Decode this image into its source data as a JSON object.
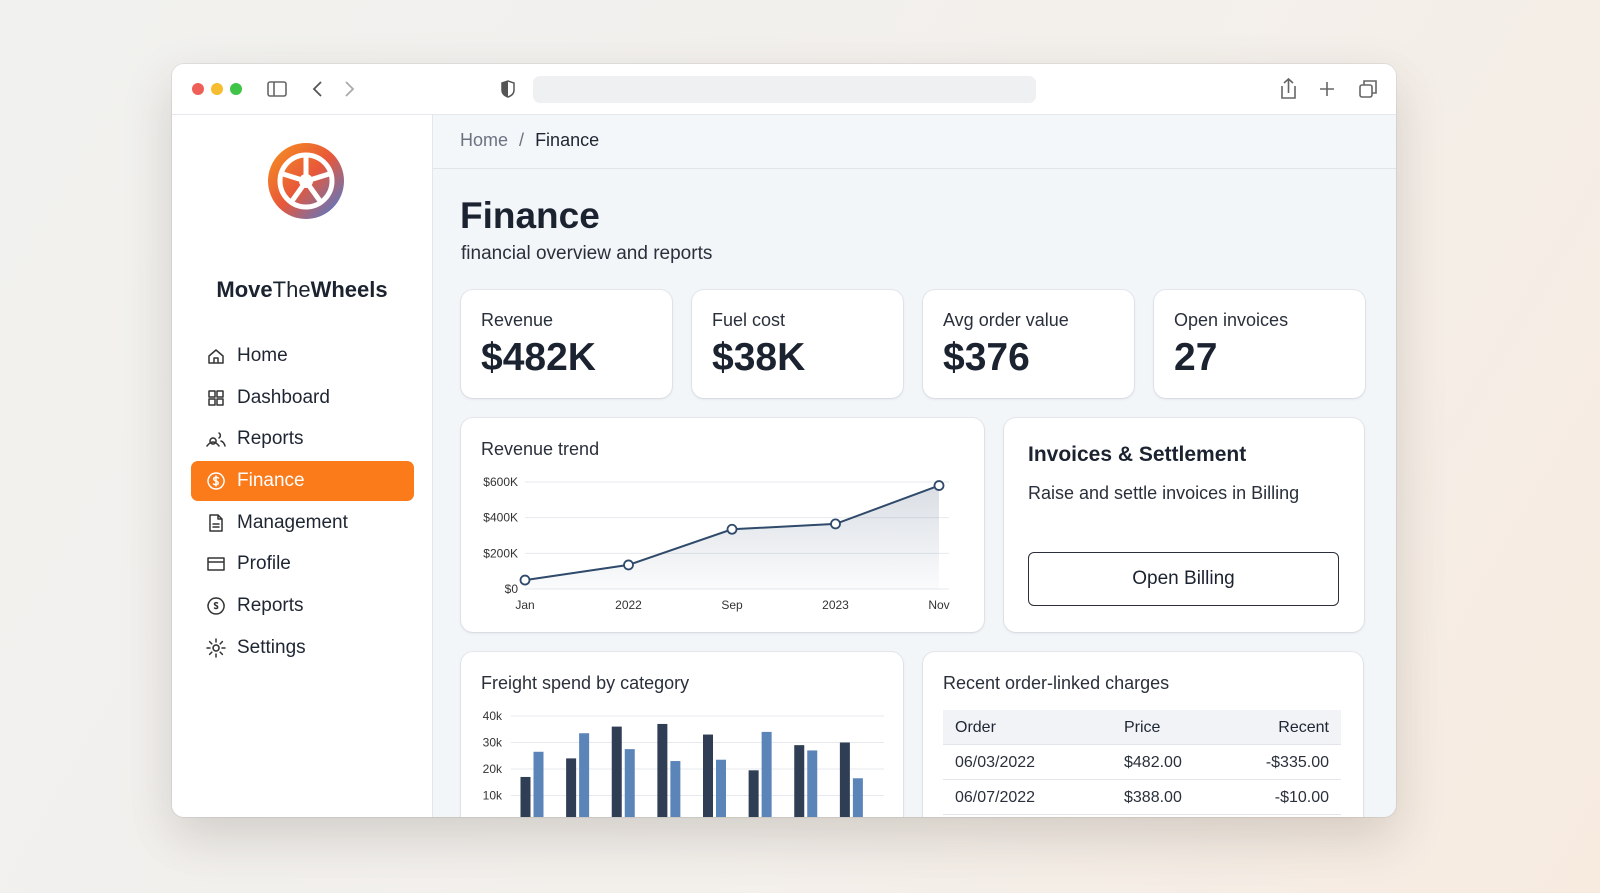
{
  "brand": {
    "parts": [
      "Move",
      "The",
      "Wheels"
    ]
  },
  "nav": {
    "items": [
      "Home",
      "Dashboard",
      "Reports",
      "Finance",
      "Management",
      "Profile",
      "Reports",
      "Settings"
    ],
    "active": 3
  },
  "breadcrumb": {
    "items": [
      "Home",
      "Finance"
    ],
    "separator": "/"
  },
  "header": {
    "title": "Finance",
    "subtitle": "financial overview and reports"
  },
  "kpis": [
    {
      "label": "Revenue",
      "value": "$482K"
    },
    {
      "label": "Fuel cost",
      "value": "$38K"
    },
    {
      "label": "Avg order value",
      "value": "$376"
    },
    {
      "label": "Open invoices",
      "value": "27"
    }
  ],
  "chart_data": [
    {
      "type": "line",
      "title": "Revenue trend",
      "categories": [
        "Jan",
        "2022",
        "Sep",
        "2023",
        "Nov"
      ],
      "values": [
        50000,
        135000,
        335000,
        365000,
        580000
      ],
      "color": "#2f4a6b",
      "ylim": [
        0,
        600000
      ],
      "yticks": [
        {
          "value": 0,
          "label": "$0"
        },
        {
          "value": 200000,
          "label": "$200K"
        },
        {
          "value": 400000,
          "label": "$400K"
        },
        {
          "value": 600000,
          "label": "$600K"
        }
      ],
      "grid": true
    },
    {
      "type": "bar",
      "title": "Freight spend by category",
      "categories": [
        null,
        null,
        null,
        null,
        null,
        null,
        null,
        null
      ],
      "series": [
        {
          "color": "#2f3d55",
          "values": [
            17000,
            24000,
            36000,
            37000,
            33000,
            19500,
            29000,
            30000
          ]
        },
        {
          "color": "#5b84b8",
          "values": [
            26500,
            33500,
            27500,
            23000,
            23500,
            34000,
            27000,
            16500
          ]
        }
      ],
      "ylim": [
        0,
        40000
      ],
      "yticks": [
        {
          "value": 10000,
          "label": "10k"
        },
        {
          "value": 20000,
          "label": "20k"
        },
        {
          "value": 30000,
          "label": "30k"
        },
        {
          "value": 40000,
          "label": "40k"
        }
      ],
      "grid": true
    }
  ],
  "invoices": {
    "title": "Invoices & Settlement",
    "text": "Raise and settle invoices in Billing",
    "button": "Open Billing"
  },
  "charges": {
    "title": "Recent order-linked charges",
    "columns": [
      "Order",
      "Price",
      "Recent"
    ],
    "rows": [
      [
        "06/03/2022",
        "$482.00",
        "-$335.00"
      ],
      [
        "06/07/2022",
        "$388.00",
        "-$10.00"
      ]
    ]
  }
}
